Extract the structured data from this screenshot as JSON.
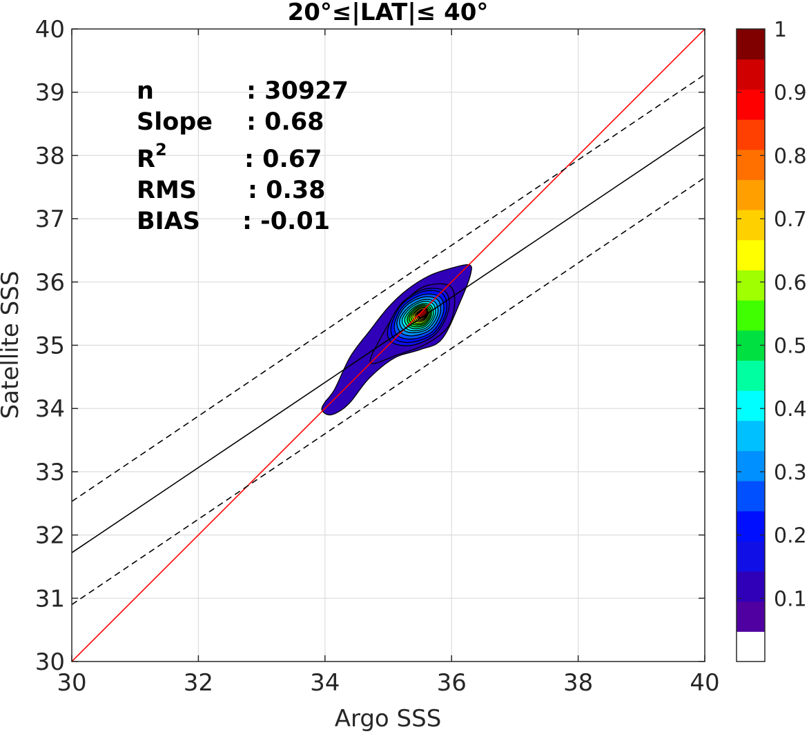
{
  "chart_data": {
    "type": "scatter",
    "title": "20°≤|LAT|≤ 40°",
    "xlabel": "Argo SSS",
    "ylabel": "Satellite SSS",
    "xlim": [
      30,
      40
    ],
    "ylim": [
      30,
      40
    ],
    "xticks": [
      30,
      32,
      34,
      36,
      38,
      40
    ],
    "yticks": [
      30,
      31,
      32,
      33,
      34,
      35,
      36,
      37,
      38,
      39,
      40
    ],
    "grid": true,
    "stats": [
      {
        "label": "n",
        "value": ": 30927"
      },
      {
        "label": "Slope",
        "value": ": 0.68"
      },
      {
        "label": "R",
        "sup": "2",
        "value": ": 0.67"
      },
      {
        "label": "RMS",
        "value": ": 0.38"
      },
      {
        "label": "BIAS",
        "value": ": -0.01"
      }
    ],
    "lines": [
      {
        "role": "one-to-one",
        "color": "#ff0000",
        "style": "solid",
        "points": [
          [
            30,
            30
          ],
          [
            40,
            40
          ]
        ]
      },
      {
        "role": "regression",
        "color": "#000000",
        "style": "solid",
        "points": [
          [
            30,
            31.72
          ],
          [
            40,
            38.45
          ]
        ]
      },
      {
        "role": "regression+rms",
        "color": "#000000",
        "style": "dashed",
        "points": [
          [
            30,
            32.53
          ],
          [
            40,
            39.28
          ]
        ]
      },
      {
        "role": "regression-rms",
        "color": "#000000",
        "style": "dashed",
        "points": [
          [
            30,
            30.9
          ],
          [
            40,
            37.65
          ]
        ]
      }
    ],
    "density_center": [
      35.55,
      35.5
    ],
    "density_contours": [
      {
        "level": 0.05,
        "color": "#2f00b8",
        "points": [
          [
            34.0,
            34.1
          ],
          [
            33.95,
            33.98
          ],
          [
            34.05,
            33.9
          ],
          [
            34.2,
            33.94
          ],
          [
            34.4,
            34.1
          ],
          [
            34.7,
            34.48
          ],
          [
            35.1,
            34.8
          ],
          [
            35.5,
            34.93
          ],
          [
            35.85,
            35.1
          ],
          [
            36.15,
            35.72
          ],
          [
            36.3,
            36.12
          ],
          [
            36.28,
            36.27
          ],
          [
            36.0,
            36.22
          ],
          [
            35.65,
            36.1
          ],
          [
            35.3,
            35.88
          ],
          [
            35.0,
            35.6
          ],
          [
            34.7,
            35.22
          ],
          [
            34.4,
            34.82
          ],
          [
            34.15,
            34.3
          ]
        ]
      },
      {
        "level": 0.1,
        "color": "#2f00b8",
        "points": [
          [
            34.72,
            34.72
          ],
          [
            34.9,
            35.15
          ],
          [
            35.2,
            35.62
          ],
          [
            35.55,
            35.92
          ],
          [
            35.95,
            35.95
          ],
          [
            36.05,
            35.7
          ],
          [
            35.95,
            35.3
          ],
          [
            35.6,
            35.02
          ],
          [
            35.15,
            34.85
          ]
        ]
      },
      {
        "level": 0.15,
        "color": "#1010e6",
        "points": [
          [
            35.0,
            35.28
          ],
          [
            35.2,
            35.65
          ],
          [
            35.55,
            35.88
          ],
          [
            35.9,
            35.85
          ],
          [
            35.95,
            35.55
          ],
          [
            35.75,
            35.18
          ],
          [
            35.38,
            35.0
          ],
          [
            35.05,
            35.05
          ]
        ]
      },
      {
        "level": 0.2,
        "color": "#0010ff",
        "points": [
          [
            35.05,
            35.32
          ],
          [
            35.22,
            35.65
          ],
          [
            35.55,
            35.85
          ],
          [
            35.85,
            35.82
          ],
          [
            35.92,
            35.55
          ],
          [
            35.73,
            35.2
          ],
          [
            35.38,
            35.05
          ],
          [
            35.1,
            35.1
          ]
        ]
      },
      {
        "level": 0.25,
        "color": "#0050ff",
        "points": [
          [
            35.1,
            35.35
          ],
          [
            35.25,
            35.63
          ],
          [
            35.55,
            35.8
          ],
          [
            35.82,
            35.76
          ],
          [
            35.87,
            35.52
          ],
          [
            35.7,
            35.22
          ],
          [
            35.4,
            35.1
          ],
          [
            35.15,
            35.15
          ]
        ]
      },
      {
        "level": 0.3,
        "color": "#0090ff",
        "points": [
          [
            35.14,
            35.38
          ],
          [
            35.28,
            35.62
          ],
          [
            35.55,
            35.76
          ],
          [
            35.78,
            35.72
          ],
          [
            35.82,
            35.5
          ],
          [
            35.67,
            35.25
          ],
          [
            35.4,
            35.15
          ],
          [
            35.2,
            35.2
          ]
        ]
      },
      {
        "level": 0.35,
        "color": "#00c0ff",
        "points": [
          [
            35.18,
            35.4
          ],
          [
            35.32,
            35.6
          ],
          [
            35.55,
            35.72
          ],
          [
            35.74,
            35.68
          ],
          [
            35.78,
            35.49
          ],
          [
            35.64,
            35.27
          ],
          [
            35.42,
            35.2
          ],
          [
            35.24,
            35.24
          ]
        ]
      },
      {
        "level": 0.4,
        "color": "#00ffff",
        "points": [
          [
            35.22,
            35.41
          ],
          [
            35.35,
            35.59
          ],
          [
            35.55,
            35.69
          ],
          [
            35.71,
            35.65
          ],
          [
            35.74,
            35.48
          ],
          [
            35.62,
            35.29
          ],
          [
            35.43,
            35.23
          ],
          [
            35.28,
            35.27
          ]
        ]
      },
      {
        "level": 0.45,
        "color": "#00ffa0",
        "points": [
          [
            35.26,
            35.42
          ],
          [
            35.38,
            35.58
          ],
          [
            35.55,
            35.66
          ],
          [
            35.68,
            35.62
          ],
          [
            35.71,
            35.47
          ],
          [
            35.6,
            35.31
          ],
          [
            35.44,
            35.26
          ],
          [
            35.31,
            35.3
          ]
        ]
      },
      {
        "level": 0.5,
        "color": "#00e040",
        "points": [
          [
            35.3,
            35.43
          ],
          [
            35.4,
            35.57
          ],
          [
            35.55,
            35.64
          ],
          [
            35.66,
            35.6
          ],
          [
            35.68,
            35.47
          ],
          [
            35.59,
            35.33
          ],
          [
            35.45,
            35.29
          ],
          [
            35.34,
            35.32
          ]
        ]
      },
      {
        "level": 0.55,
        "color": "#40ff00",
        "points": [
          [
            35.33,
            35.44
          ],
          [
            35.42,
            35.56
          ],
          [
            35.55,
            35.62
          ],
          [
            35.64,
            35.58
          ],
          [
            35.66,
            35.47
          ],
          [
            35.58,
            35.35
          ],
          [
            35.46,
            35.32
          ],
          [
            35.37,
            35.35
          ]
        ]
      },
      {
        "level": 0.6,
        "color": "#a0ff00",
        "points": [
          [
            35.36,
            35.45
          ],
          [
            35.44,
            35.55
          ],
          [
            35.55,
            35.6
          ],
          [
            35.62,
            35.57
          ],
          [
            35.64,
            35.47
          ],
          [
            35.57,
            35.37
          ],
          [
            35.47,
            35.34
          ],
          [
            35.4,
            35.37
          ]
        ]
      },
      {
        "level": 0.65,
        "color": "#ffff00",
        "points": [
          [
            35.39,
            35.46
          ],
          [
            35.46,
            35.55
          ],
          [
            35.55,
            35.59
          ],
          [
            35.61,
            35.56
          ],
          [
            35.62,
            35.47
          ],
          [
            35.56,
            35.39
          ],
          [
            35.48,
            35.37
          ],
          [
            35.42,
            35.39
          ]
        ]
      },
      {
        "level": 0.7,
        "color": "#ffd000",
        "points": [
          [
            35.42,
            35.47
          ],
          [
            35.48,
            35.54
          ],
          [
            35.55,
            35.57
          ],
          [
            35.6,
            35.55
          ],
          [
            35.61,
            35.47
          ],
          [
            35.56,
            35.41
          ],
          [
            35.49,
            35.39
          ],
          [
            35.44,
            35.41
          ]
        ]
      },
      {
        "level": 0.75,
        "color": "#ffa000",
        "points": [
          [
            35.44,
            35.47
          ],
          [
            35.49,
            35.54
          ],
          [
            35.55,
            35.56
          ],
          [
            35.59,
            35.54
          ],
          [
            35.6,
            35.47
          ],
          [
            35.55,
            35.42
          ],
          [
            35.5,
            35.41
          ],
          [
            35.46,
            35.43
          ]
        ]
      },
      {
        "level": 0.8,
        "color": "#ff7000",
        "points": [
          [
            35.46,
            35.48
          ],
          [
            35.5,
            35.53
          ],
          [
            35.55,
            35.55
          ],
          [
            35.58,
            35.53
          ],
          [
            35.59,
            35.47
          ],
          [
            35.55,
            35.44
          ],
          [
            35.51,
            35.43
          ],
          [
            35.48,
            35.44
          ]
        ]
      },
      {
        "level": 0.85,
        "color": "#ff4000",
        "points": [
          [
            35.48,
            35.48
          ],
          [
            35.51,
            35.53
          ],
          [
            35.55,
            35.54
          ],
          [
            35.58,
            35.52
          ],
          [
            35.58,
            35.48
          ],
          [
            35.55,
            35.45
          ],
          [
            35.52,
            35.44
          ],
          [
            35.49,
            35.45
          ]
        ]
      },
      {
        "level": 0.9,
        "color": "#ff0000",
        "points": [
          [
            35.5,
            35.49
          ],
          [
            35.52,
            35.52
          ],
          [
            35.55,
            35.53
          ],
          [
            35.57,
            35.51
          ],
          [
            35.57,
            35.48
          ],
          [
            35.55,
            35.46
          ],
          [
            35.53,
            35.46
          ],
          [
            35.51,
            35.47
          ]
        ]
      },
      {
        "level": 0.95,
        "color": "#d00000",
        "points": [
          [
            35.52,
            35.49
          ],
          [
            35.53,
            35.51
          ],
          [
            35.55,
            35.52
          ],
          [
            35.56,
            35.51
          ],
          [
            35.56,
            35.49
          ],
          [
            35.55,
            35.48
          ],
          [
            35.54,
            35.48
          ],
          [
            35.53,
            35.48
          ]
        ]
      }
    ],
    "colorbar": {
      "colors": [
        "#ffffff",
        "#5000a0",
        "#2f00b8",
        "#1010e6",
        "#0010ff",
        "#0050ff",
        "#0090ff",
        "#00c0ff",
        "#00ffff",
        "#00ffa0",
        "#00e040",
        "#40ff00",
        "#a0ff00",
        "#ffff00",
        "#ffd000",
        "#ffa000",
        "#ff7000",
        "#ff4000",
        "#ff0000",
        "#d00000",
        "#800000"
      ],
      "ticks": [
        {
          "value": 0.1,
          "label": "0.1"
        },
        {
          "value": 0.2,
          "label": "0.2"
        },
        {
          "value": 0.3,
          "label": "0.3"
        },
        {
          "value": 0.4,
          "label": "0.4"
        },
        {
          "value": 0.5,
          "label": "0.5"
        },
        {
          "value": 0.6,
          "label": "0.6"
        },
        {
          "value": 0.7,
          "label": "0.7"
        },
        {
          "value": 0.8,
          "label": "0.8"
        },
        {
          "value": 0.9,
          "label": "0.9"
        },
        {
          "value": 1,
          "label": "1"
        }
      ],
      "range": [
        0,
        1
      ]
    }
  }
}
